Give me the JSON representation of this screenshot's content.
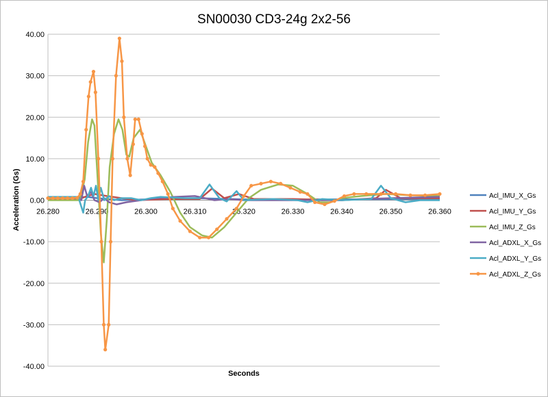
{
  "chart_data": {
    "type": "line",
    "title": "SN00030 CD3-24g 2x2-56",
    "xlabel": "Seconds",
    "ylabel": "Acceleration (Gs)",
    "xlim": [
      26.28,
      26.36
    ],
    "ylim": [
      -40,
      40
    ],
    "xticks": [
      "26.280",
      "26.290",
      "26.300",
      "26.310",
      "26.320",
      "26.330",
      "26.340",
      "26.350",
      "26.360"
    ],
    "xtick_values": [
      26.28,
      26.29,
      26.3,
      26.31,
      26.32,
      26.33,
      26.34,
      26.35,
      26.36
    ],
    "yticks": [
      "40.00",
      "30.00",
      "20.00",
      "10.00",
      "0.00",
      "-10.00",
      "-20.00",
      "-30.00",
      "-40.00"
    ],
    "ytick_values": [
      40,
      30,
      20,
      10,
      0,
      -10,
      -20,
      -30,
      -40
    ],
    "grid": "horizontal",
    "legend": "right",
    "series": [
      {
        "name": "Acl_IMU_X_Gs",
        "color": "#4F81BD",
        "markers": false,
        "points": [
          [
            26.28,
            0.3
          ],
          [
            26.288,
            0.8
          ],
          [
            26.29,
            0.5
          ],
          [
            26.295,
            0
          ],
          [
            26.3,
            0.2
          ],
          [
            26.31,
            0.5
          ],
          [
            26.32,
            0.2
          ],
          [
            26.34,
            0.2
          ],
          [
            26.36,
            0.3
          ]
        ]
      },
      {
        "name": "Acl_IMU_Y_Gs",
        "color": "#C0504D",
        "markers": false,
        "points": [
          [
            26.28,
            0.3
          ],
          [
            26.2865,
            0.3
          ],
          [
            26.288,
            1
          ],
          [
            26.2895,
            1.5
          ],
          [
            26.292,
            1
          ],
          [
            26.295,
            0.5
          ],
          [
            26.298,
            0
          ],
          [
            26.305,
            0.3
          ],
          [
            26.311,
            0.3
          ],
          [
            26.3135,
            2.8
          ],
          [
            26.316,
            0.5
          ],
          [
            26.319,
            1.5
          ],
          [
            26.322,
            0.3
          ],
          [
            26.33,
            0.3
          ],
          [
            26.34,
            0
          ],
          [
            26.347,
            0.5
          ],
          [
            26.349,
            2.5
          ],
          [
            26.352,
            0.5
          ],
          [
            26.36,
            0.5
          ]
        ]
      },
      {
        "name": "Acl_IMU_Z_Gs",
        "color": "#9BBB59",
        "markers": false,
        "points": [
          [
            26.28,
            0
          ],
          [
            26.2865,
            0
          ],
          [
            26.2875,
            5
          ],
          [
            26.2882,
            14
          ],
          [
            26.289,
            19.5
          ],
          [
            26.2895,
            18
          ],
          [
            26.29,
            8
          ],
          [
            26.2908,
            -8
          ],
          [
            26.2914,
            -15
          ],
          [
            26.292,
            -5
          ],
          [
            26.2926,
            8
          ],
          [
            26.2935,
            16
          ],
          [
            26.2944,
            19.5
          ],
          [
            26.2952,
            17
          ],
          [
            26.296,
            11
          ],
          [
            26.2966,
            10.5
          ],
          [
            26.2975,
            15
          ],
          [
            26.2988,
            17
          ],
          [
            26.3,
            13
          ],
          [
            26.3012,
            9
          ],
          [
            26.303,
            6
          ],
          [
            26.305,
            2
          ],
          [
            26.307,
            -3
          ],
          [
            26.309,
            -6.5
          ],
          [
            26.3115,
            -8.5
          ],
          [
            26.3135,
            -9
          ],
          [
            26.316,
            -6.5
          ],
          [
            26.3185,
            -3
          ],
          [
            26.321,
            0.5
          ],
          [
            26.3235,
            2.5
          ],
          [
            26.327,
            3.8
          ],
          [
            26.33,
            3.5
          ],
          [
            26.333,
            1.5
          ],
          [
            26.3355,
            -0.5
          ],
          [
            26.3375,
            -0.5
          ],
          [
            26.34,
            0.5
          ],
          [
            26.344,
            1
          ],
          [
            26.349,
            1.5
          ],
          [
            26.354,
            1.2
          ],
          [
            26.36,
            1
          ]
        ]
      },
      {
        "name": "Acl_ADXL_X_Gs",
        "color": "#8064A2",
        "markers": false,
        "points": [
          [
            26.28,
            0.5
          ],
          [
            26.2862,
            0.5
          ],
          [
            26.2868,
            0
          ],
          [
            26.2874,
            3.5
          ],
          [
            26.288,
            1
          ],
          [
            26.2888,
            2
          ],
          [
            26.2895,
            0
          ],
          [
            26.2905,
            -0.5
          ],
          [
            26.2915,
            0.5
          ],
          [
            26.2925,
            -0.5
          ],
          [
            26.294,
            -1
          ],
          [
            26.296,
            -0.5
          ],
          [
            26.299,
            0
          ],
          [
            26.302,
            0.5
          ],
          [
            26.306,
            0.8
          ],
          [
            26.31,
            1
          ],
          [
            26.314,
            0
          ],
          [
            26.317,
            0.3
          ],
          [
            26.32,
            0
          ],
          [
            26.33,
            0
          ],
          [
            26.34,
            0
          ],
          [
            26.345,
            0.3
          ],
          [
            26.35,
            0.5
          ],
          [
            26.36,
            0.8
          ]
        ]
      },
      {
        "name": "Acl_ADXL_Y_Gs",
        "color": "#4BACC6",
        "markers": false,
        "points": [
          [
            26.28,
            0.8
          ],
          [
            26.2862,
            0.8
          ],
          [
            26.2868,
            -1.5
          ],
          [
            26.2872,
            -3
          ],
          [
            26.2876,
            0
          ],
          [
            26.2882,
            1
          ],
          [
            26.2888,
            3
          ],
          [
            26.2893,
            1
          ],
          [
            26.2898,
            3.5
          ],
          [
            26.2903,
            0
          ],
          [
            26.2908,
            3
          ],
          [
            26.2915,
            0
          ],
          [
            26.2925,
            1
          ],
          [
            26.2935,
            0
          ],
          [
            26.295,
            0.5
          ],
          [
            26.297,
            0.5
          ],
          [
            26.299,
            0
          ],
          [
            26.301,
            0.5
          ],
          [
            26.303,
            0.8
          ],
          [
            26.308,
            0.5
          ],
          [
            26.311,
            0.5
          ],
          [
            26.313,
            3.8
          ],
          [
            26.315,
            0.5
          ],
          [
            26.3165,
            -0.3
          ],
          [
            26.3185,
            2.2
          ],
          [
            26.32,
            0
          ],
          [
            26.326,
            0.3
          ],
          [
            26.331,
            0
          ],
          [
            26.333,
            -0.5
          ],
          [
            26.336,
            0.3
          ],
          [
            26.34,
            0
          ],
          [
            26.346,
            0.3
          ],
          [
            26.348,
            3.5
          ],
          [
            26.35,
            0.5
          ],
          [
            26.353,
            -0.5
          ],
          [
            26.356,
            0
          ],
          [
            26.36,
            0
          ]
        ]
      },
      {
        "name": "Acl_ADXL_Z_Gs",
        "color": "#F79646",
        "markers": true,
        "points": [
          [
            26.28,
            0.5
          ],
          [
            26.281,
            0.5
          ],
          [
            26.282,
            0.5
          ],
          [
            26.283,
            0.5
          ],
          [
            26.284,
            0.5
          ],
          [
            26.285,
            0.5
          ],
          [
            26.286,
            0.6
          ],
          [
            26.2866,
            1.5
          ],
          [
            26.2872,
            4.5
          ],
          [
            26.2878,
            17
          ],
          [
            26.2883,
            25
          ],
          [
            26.2887,
            28.5
          ],
          [
            26.2893,
            31
          ],
          [
            26.2897,
            26
          ],
          [
            26.2903,
            10
          ],
          [
            26.2909,
            -10
          ],
          [
            26.2914,
            -30
          ],
          [
            26.2917,
            -36
          ],
          [
            26.2924,
            -30
          ],
          [
            26.2928,
            -10
          ],
          [
            26.2932,
            10
          ],
          [
            26.2939,
            30
          ],
          [
            26.2946,
            39
          ],
          [
            26.2951,
            33.5
          ],
          [
            26.2955,
            20
          ],
          [
            26.2962,
            10
          ],
          [
            26.2968,
            6
          ],
          [
            26.2974,
            13.5
          ],
          [
            26.2978,
            19.5
          ],
          [
            26.2985,
            19.5
          ],
          [
            26.2992,
            16
          ],
          [
            26.2998,
            13
          ],
          [
            26.3003,
            10
          ],
          [
            26.301,
            8.5
          ],
          [
            26.3018,
            8
          ],
          [
            26.3025,
            6.5
          ],
          [
            26.3034,
            4.5
          ],
          [
            26.3045,
            1.5
          ],
          [
            26.3055,
            -2
          ],
          [
            26.307,
            -5
          ],
          [
            26.309,
            -7.5
          ],
          [
            26.311,
            -9
          ],
          [
            26.3128,
            -9
          ],
          [
            26.3145,
            -7
          ],
          [
            26.3165,
            -4.5
          ],
          [
            26.3185,
            -2
          ],
          [
            26.32,
            1
          ],
          [
            26.3215,
            3.5
          ],
          [
            26.3235,
            4
          ],
          [
            26.3255,
            4.5
          ],
          [
            26.3275,
            4
          ],
          [
            26.3295,
            3
          ],
          [
            26.3315,
            2
          ],
          [
            26.333,
            1.5
          ],
          [
            26.3345,
            -0.5
          ],
          [
            26.3365,
            -1
          ],
          [
            26.3385,
            -0.2
          ],
          [
            26.3405,
            1
          ],
          [
            26.3425,
            1.5
          ],
          [
            26.345,
            1.5
          ],
          [
            26.348,
            1.5
          ],
          [
            26.351,
            1.5
          ],
          [
            26.354,
            1.2
          ],
          [
            26.357,
            1.2
          ],
          [
            26.36,
            1.5
          ]
        ]
      }
    ]
  }
}
